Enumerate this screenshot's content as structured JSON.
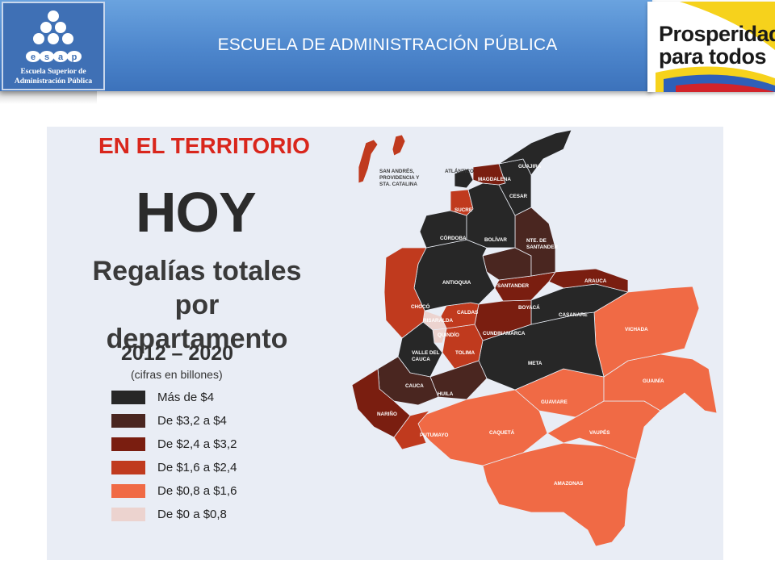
{
  "header": {
    "title": "ESCUELA DE ADMINISTRACIÓN PÚBLICA",
    "left_logo": {
      "text": "ESAP",
      "line1": "Escuela Superior de",
      "line2": "Administración Pública"
    },
    "right_logo": {
      "line1": "Prosperidad",
      "line2": "para todos"
    }
  },
  "slide": {
    "section_label": "EN EL TERRITORIO",
    "headline": "HOY",
    "subtitle_line1": "Regalías totales por",
    "subtitle_line2": "departamento",
    "period": "2012 – 2020",
    "units": "(cifras en billones)"
  },
  "legend": [
    {
      "label": "Más de $4",
      "color": "#272727"
    },
    {
      "label": "De $3,2 a $4",
      "color": "#4a2620"
    },
    {
      "label": "De $2,4 a $3,2",
      "color": "#7a1e10"
    },
    {
      "label": "De $1,6 a $2,4",
      "color": "#c03a1e"
    },
    {
      "label": "De $0,8 a $1,6",
      "color": "#f06a45"
    },
    {
      "label": "De $0 a $0,8",
      "color": "#ecd3cf"
    }
  ],
  "map": {
    "departments": [
      {
        "name": "SAN ANDRÉS, PROVIDENCIA Y STA. CATALINA",
        "lines": [
          "SAN ANDRÉS,",
          "PROVIDENCIA Y",
          "STA. CATALINA"
        ]
      },
      {
        "name": "ATLÁNTICO",
        "lines": [
          "ATLÁNTICO"
        ]
      },
      {
        "name": "GUAJIRA",
        "lines": [
          "GUAJIRA"
        ]
      },
      {
        "name": "MAGDALENA",
        "lines": [
          "MAGDALENA"
        ]
      },
      {
        "name": "CESAR",
        "lines": [
          "CESAR"
        ]
      },
      {
        "name": "SUCRE",
        "lines": [
          "SUCRE"
        ]
      },
      {
        "name": "CÓRDOBA",
        "lines": [
          "CÓRDOBA"
        ]
      },
      {
        "name": "BOLÍVAR",
        "lines": [
          "BOLÍVAR"
        ]
      },
      {
        "name": "NTE. DE SANTANDER",
        "lines": [
          "NTE. DE",
          "SANTANDER"
        ]
      },
      {
        "name": "ANTIOQUIA",
        "lines": [
          "ANTIOQUIA"
        ]
      },
      {
        "name": "SANTANDER",
        "lines": [
          "SANTANDER"
        ]
      },
      {
        "name": "ARAUCA",
        "lines": [
          "ARAUCA"
        ]
      },
      {
        "name": "CHOCÓ",
        "lines": [
          "CHOCÓ"
        ]
      },
      {
        "name": "CALDAS",
        "lines": [
          "CALDAS"
        ]
      },
      {
        "name": "BOYACÁ",
        "lines": [
          "BOYACÁ"
        ]
      },
      {
        "name": "CASANARE",
        "lines": [
          "CASANARE"
        ]
      },
      {
        "name": "RISARALDA",
        "lines": [
          "RISARALDA"
        ]
      },
      {
        "name": "QUINDÍO",
        "lines": [
          "QUINDÍO"
        ]
      },
      {
        "name": "CUNDINAMARCA",
        "lines": [
          "CUNDINAMARCA"
        ]
      },
      {
        "name": "VICHADA",
        "lines": [
          "VICHADA"
        ]
      },
      {
        "name": "VALLE DEL CAUCA",
        "lines": [
          "VALLE DEL",
          "CAUCA"
        ]
      },
      {
        "name": "TOLIMA",
        "lines": [
          "TOLIMA"
        ]
      },
      {
        "name": "META",
        "lines": [
          "META"
        ]
      },
      {
        "name": "GUAINÍA",
        "lines": [
          "GUAINÍA"
        ]
      },
      {
        "name": "CAUCA",
        "lines": [
          "CAUCA"
        ]
      },
      {
        "name": "HUILA",
        "lines": [
          "HUILA"
        ]
      },
      {
        "name": "GUAVIARE",
        "lines": [
          "GUAVIARE"
        ]
      },
      {
        "name": "NARIÑO",
        "lines": [
          "NARIÑO"
        ]
      },
      {
        "name": "PUTUMAYO",
        "lines": [
          "PUTUMAYO"
        ]
      },
      {
        "name": "CAQUETÁ",
        "lines": [
          "CAQUETÁ"
        ]
      },
      {
        "name": "VAUPÉS",
        "lines": [
          "VAUPÉS"
        ]
      },
      {
        "name": "AMAZONAS",
        "lines": [
          "AMAZONAS"
        ]
      }
    ]
  }
}
